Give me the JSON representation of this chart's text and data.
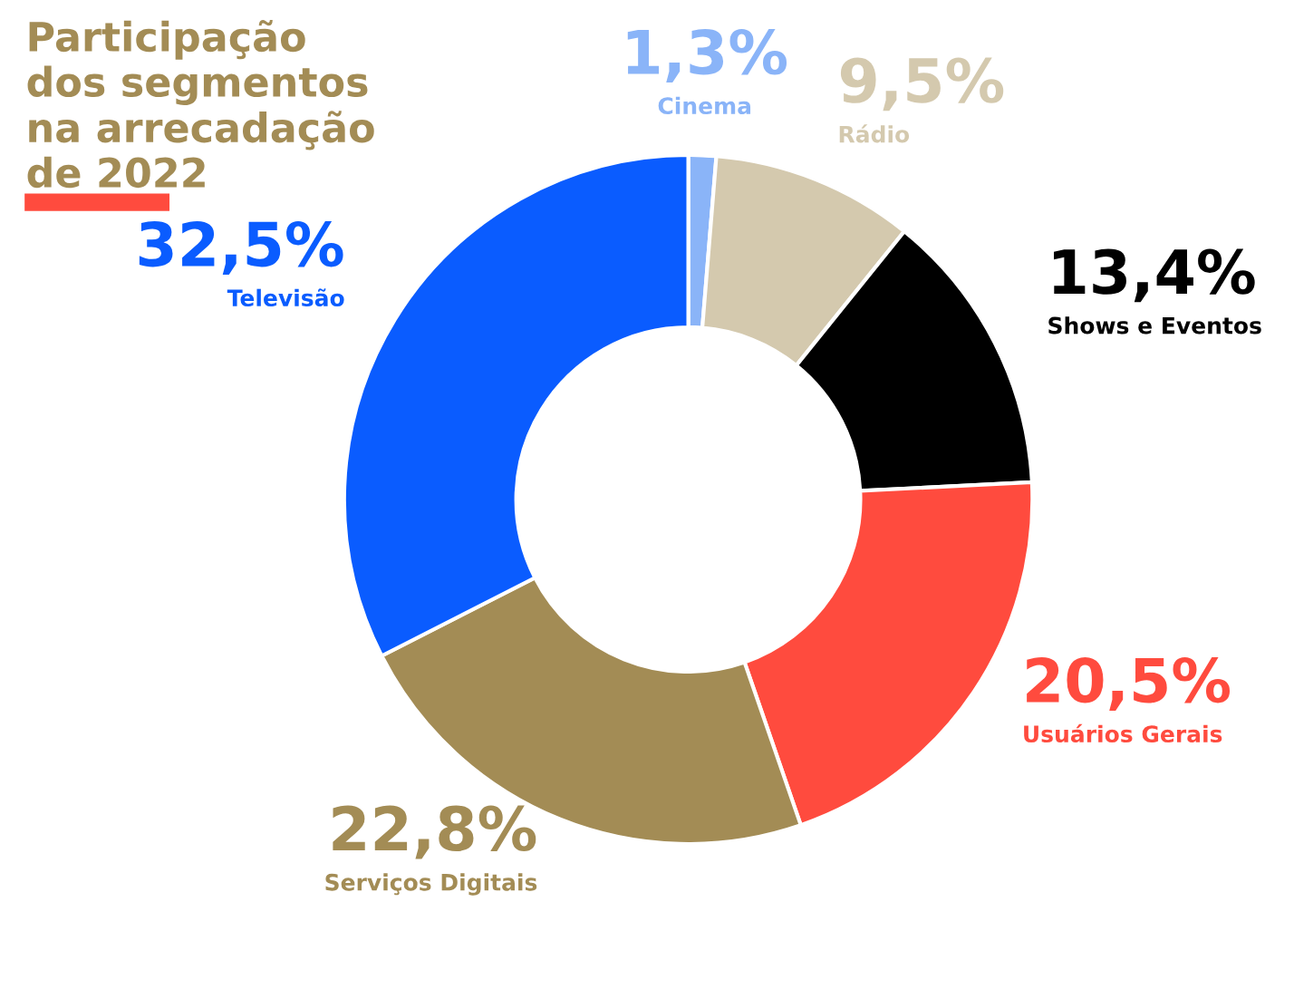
{
  "chart_data": {
    "type": "donut",
    "title": "Participação\ndos segmentos\nna arrecadação\nde 2022",
    "categories": [
      "Cinema",
      "Rádio",
      "Shows e Eventos",
      "Usuários Gerais",
      "Serviços Digitais",
      "Televisão"
    ],
    "values": [
      1.3,
      9.5,
      13.4,
      20.5,
      22.8,
      32.5
    ],
    "value_labels": [
      "1,3%",
      "9,5%",
      "13,4%",
      "20,5%",
      "22,8%",
      "32,5%"
    ],
    "colors": [
      "#8ab4f8",
      "#d4c9ae",
      "#000000",
      "#ff4b3e",
      "#a38c55",
      "#0a5cff"
    ],
    "legend": false
  }
}
